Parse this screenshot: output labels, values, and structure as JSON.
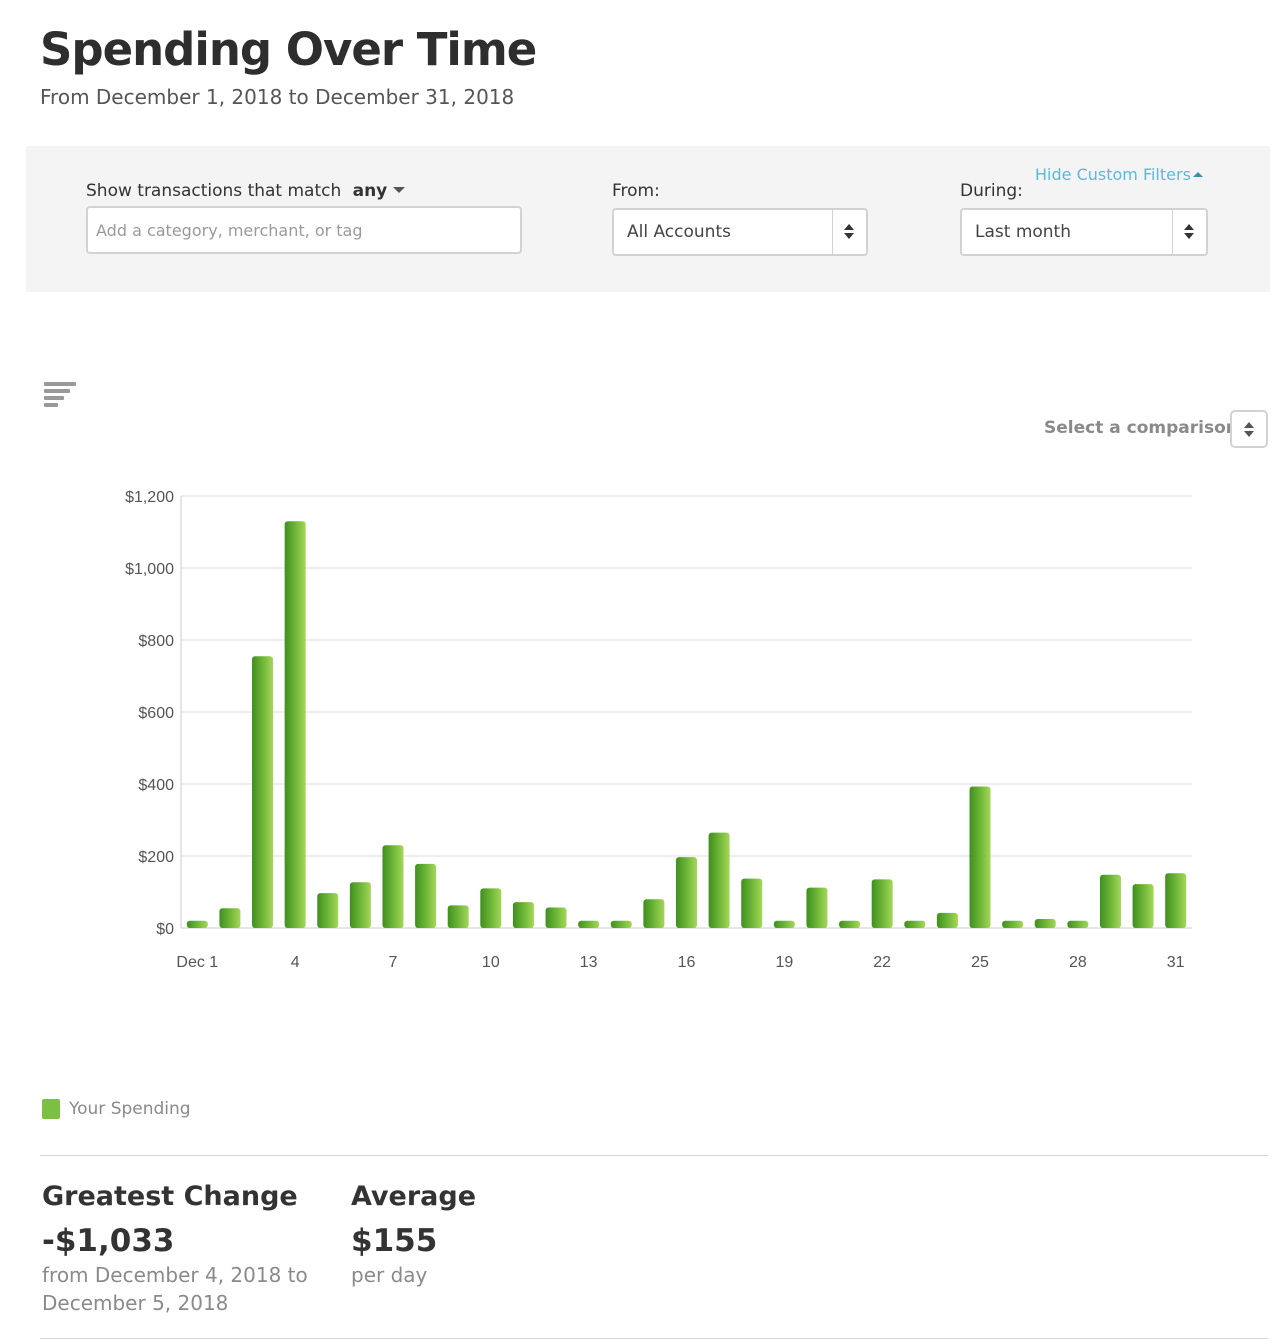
{
  "header": {
    "title": "Spending Over Time",
    "subtitle": "From December 1, 2018 to December 31, 2018"
  },
  "filters": {
    "match_prefix": "Show transactions that match",
    "match_value": "any",
    "search_placeholder": "Add a category, merchant, or tag",
    "from_label": "From:",
    "from_value": "All Accounts",
    "during_label": "During:",
    "during_value": "Last month",
    "hide_filters_link": "Hide Custom Filters"
  },
  "toolbar": {
    "sort_icon": "sort-bars-icon",
    "comparison_label": "Select a comparison"
  },
  "chart_data": {
    "type": "bar",
    "categories": [
      "Dec 1",
      "2",
      "3",
      "4",
      "5",
      "6",
      "7",
      "8",
      "9",
      "10",
      "11",
      "12",
      "13",
      "14",
      "15",
      "16",
      "17",
      "18",
      "19",
      "20",
      "21",
      "22",
      "23",
      "24",
      "25",
      "26",
      "27",
      "28",
      "29",
      "30",
      "31"
    ],
    "x_tick_labels": [
      "Dec 1",
      "4",
      "7",
      "10",
      "13",
      "16",
      "19",
      "22",
      "25",
      "28",
      "31"
    ],
    "y_tick_labels": [
      "$0",
      "$200",
      "$400",
      "$600",
      "$800",
      "$1,000",
      "$1,200"
    ],
    "ylim": [
      0,
      1200
    ],
    "grid": true,
    "series": [
      {
        "name": "Your Spending",
        "color": "#7cc043",
        "values": [
          20,
          55,
          755,
          1130,
          97,
          127,
          230,
          178,
          63,
          110,
          72,
          57,
          20,
          20,
          80,
          197,
          265,
          137,
          20,
          112,
          20,
          135,
          20,
          42,
          393,
          20,
          25,
          20,
          148,
          122,
          152
        ]
      }
    ]
  },
  "legend": {
    "label": "Your Spending",
    "color": "#7cc043"
  },
  "stats": {
    "greatest_change": {
      "heading": "Greatest Change",
      "value": "-$1,033",
      "note": "from December 4, 2018 to December 5, 2018"
    },
    "average": {
      "heading": "Average",
      "value": "$155",
      "note": "per day"
    }
  }
}
